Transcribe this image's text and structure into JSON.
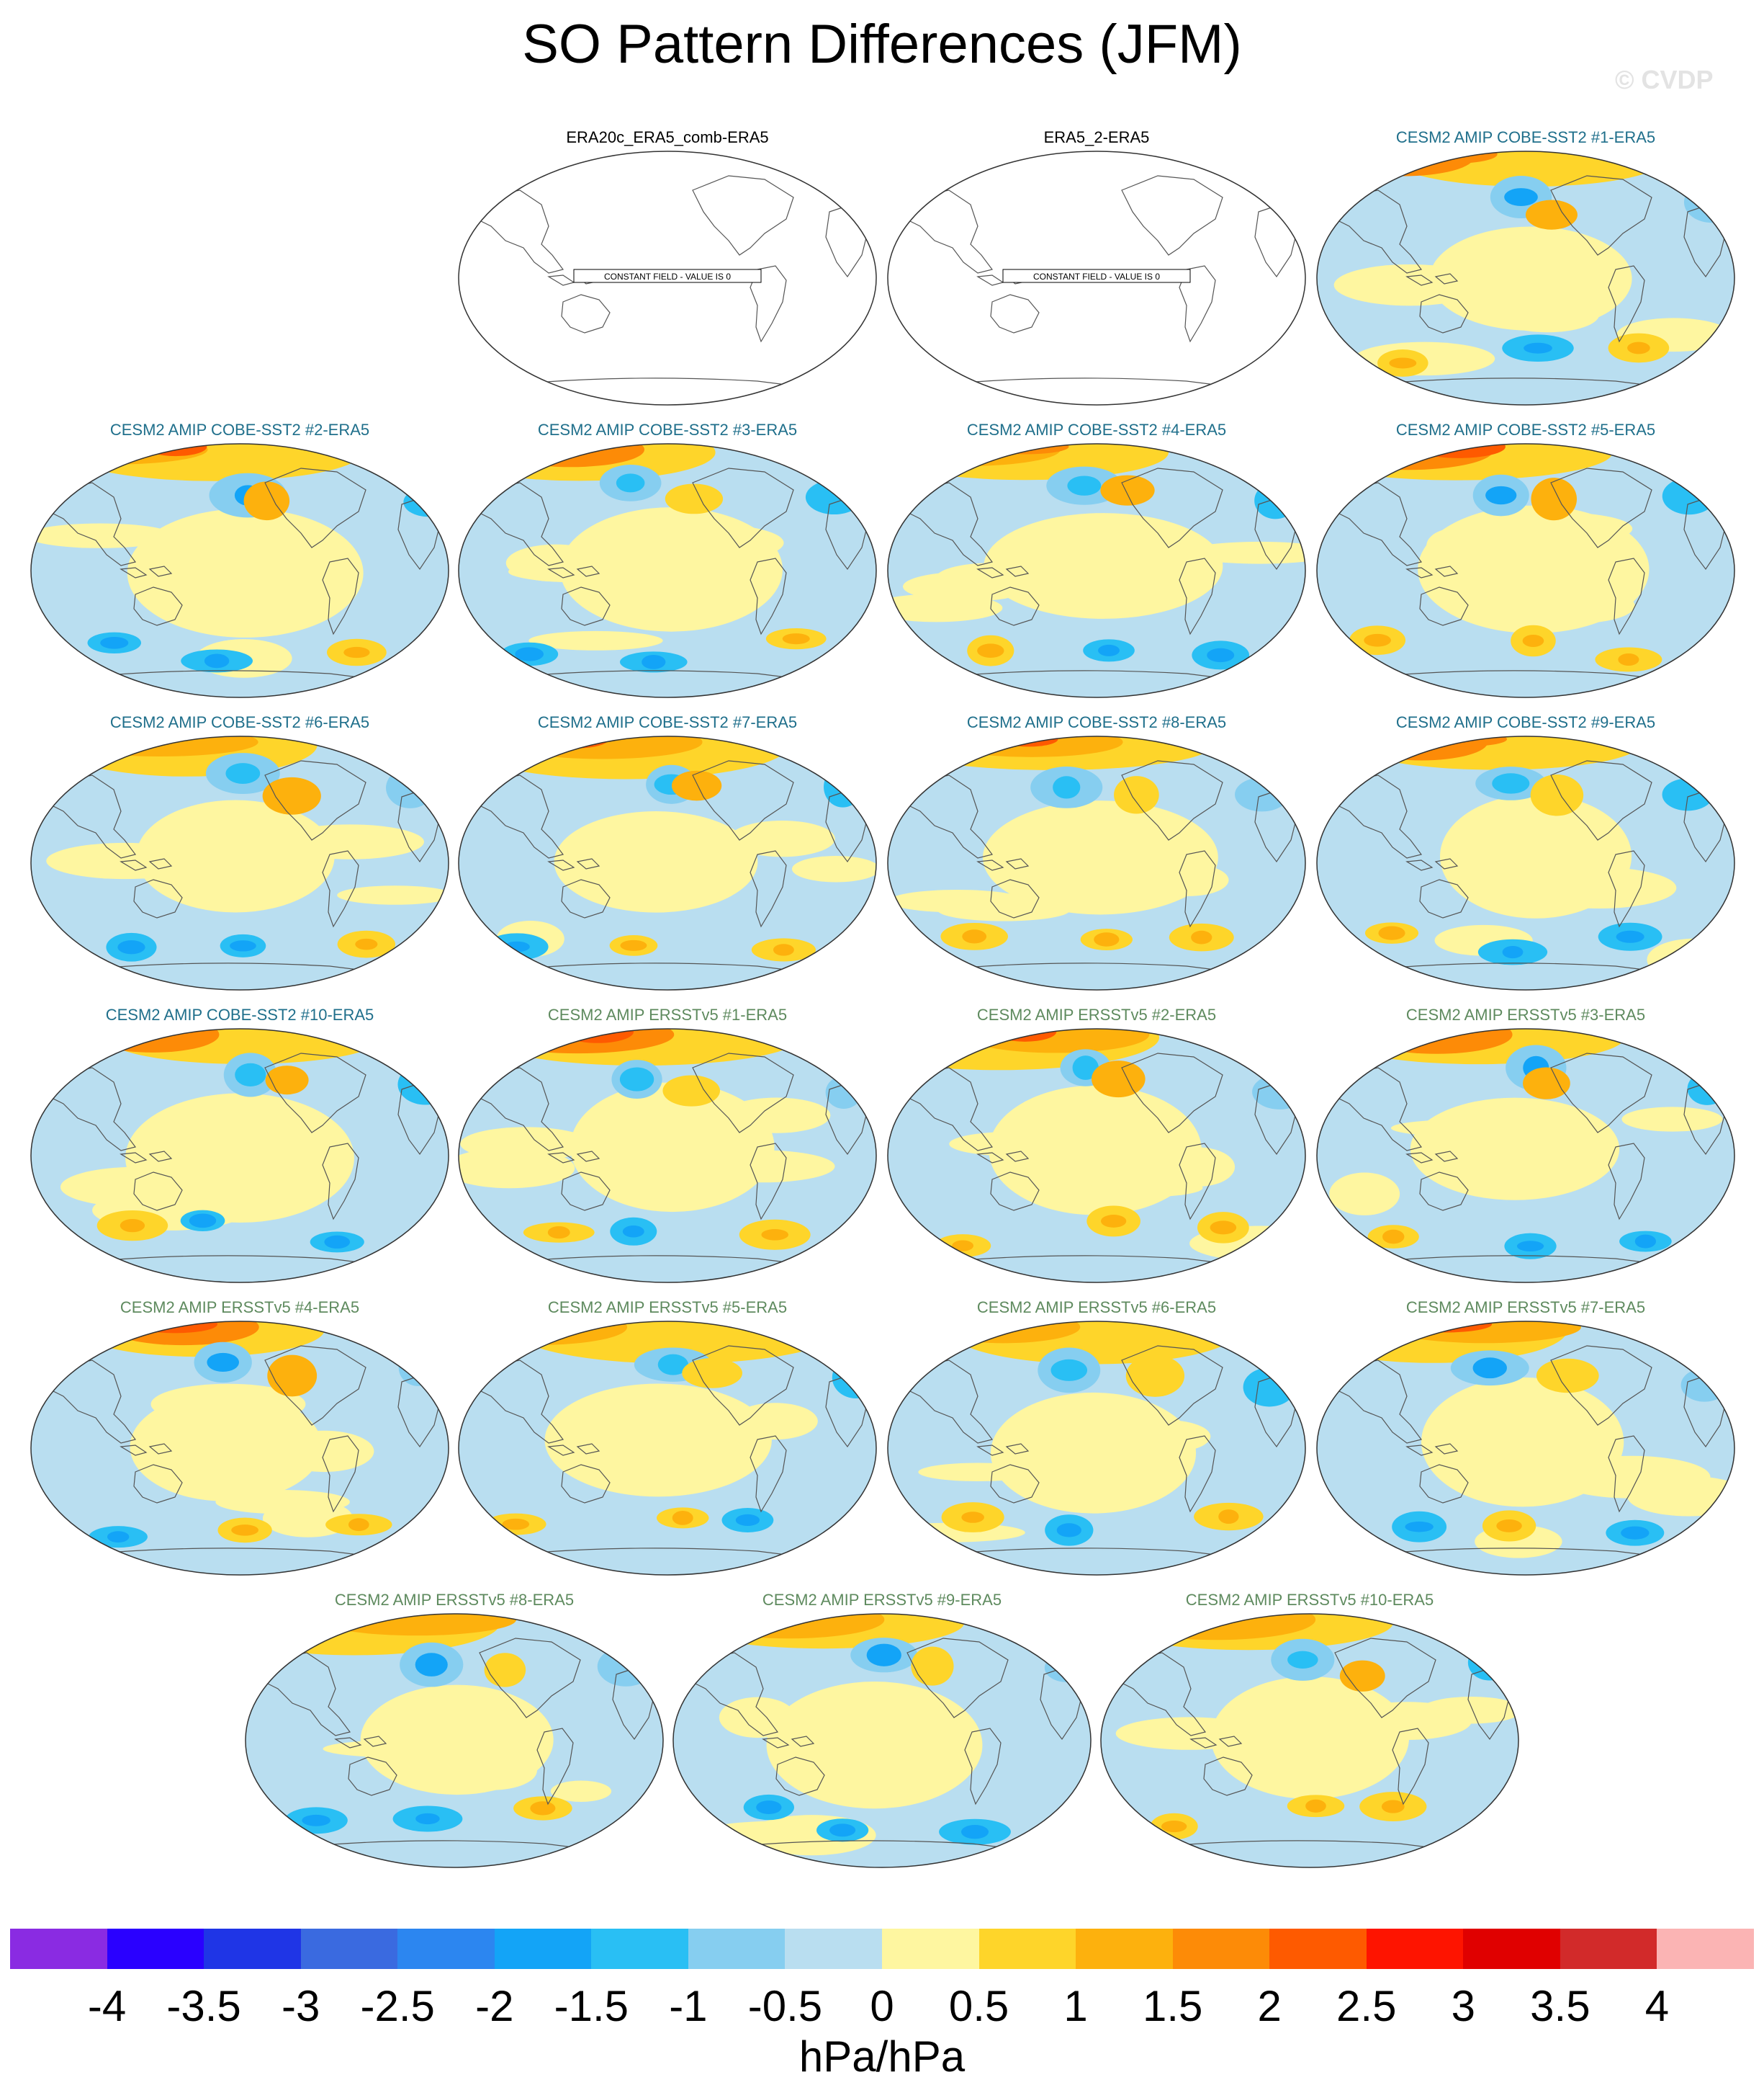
{
  "title": "SO Pattern Differences (JFM)",
  "watermark": "© CVDP",
  "colorbar": {
    "colors": [
      "#8a2be2",
      "#2a00ff",
      "#1f35e6",
      "#3a6ae0",
      "#2c86f0",
      "#13a4f7",
      "#29bff4",
      "#86cef0",
      "#b9def0",
      "#fef6a0",
      "#fed52a",
      "#fdb10d",
      "#fd8b07",
      "#fe5a00",
      "#fe1400",
      "#e00000",
      "#d22a2a",
      "#fbb4b4"
    ],
    "ticks": [
      "-4",
      "-3.5",
      "-3",
      "-2.5",
      "-2",
      "-1.5",
      "-1",
      "-0.5",
      "0",
      "0.5",
      "1",
      "1.5",
      "2",
      "2.5",
      "3",
      "3.5",
      "4"
    ],
    "units": "hPa/hPa"
  },
  "panels": [
    {
      "title": "ERA20c_ERA5_comb-ERA5",
      "title_color": "#000000",
      "constant": true,
      "constant_label": "CONSTANT FIELD - VALUE IS 0",
      "seed": 0
    },
    {
      "title": "ERA5_2-ERA5",
      "title_color": "#000000",
      "constant": true,
      "constant_label": "CONSTANT FIELD - VALUE IS 0",
      "seed": 0
    },
    {
      "title": "CESM2 AMIP COBE-SST2 #1-ERA5",
      "title_color": "#1f6f8b",
      "constant": false,
      "seed": 1
    },
    {
      "title": "CESM2 AMIP COBE-SST2 #2-ERA5",
      "title_color": "#1f6f8b",
      "constant": false,
      "seed": 2
    },
    {
      "title": "CESM2 AMIP COBE-SST2 #3-ERA5",
      "title_color": "#1f6f8b",
      "constant": false,
      "seed": 3
    },
    {
      "title": "CESM2 AMIP COBE-SST2 #4-ERA5",
      "title_color": "#1f6f8b",
      "constant": false,
      "seed": 4
    },
    {
      "title": "CESM2 AMIP COBE-SST2 #5-ERA5",
      "title_color": "#1f6f8b",
      "constant": false,
      "seed": 5
    },
    {
      "title": "CESM2 AMIP COBE-SST2 #6-ERA5",
      "title_color": "#1f6f8b",
      "constant": false,
      "seed": 6
    },
    {
      "title": "CESM2 AMIP COBE-SST2 #7-ERA5",
      "title_color": "#1f6f8b",
      "constant": false,
      "seed": 7
    },
    {
      "title": "CESM2 AMIP COBE-SST2 #8-ERA5",
      "title_color": "#1f6f8b",
      "constant": false,
      "seed": 8
    },
    {
      "title": "CESM2 AMIP COBE-SST2 #9-ERA5",
      "title_color": "#1f6f8b",
      "constant": false,
      "seed": 9
    },
    {
      "title": "CESM2 AMIP COBE-SST2 #10-ERA5",
      "title_color": "#1f6f8b",
      "constant": false,
      "seed": 10
    },
    {
      "title": "CESM2 AMIP ERSSTv5 #1-ERA5",
      "title_color": "#5e8a5e",
      "constant": false,
      "seed": 11
    },
    {
      "title": "CESM2 AMIP ERSSTv5 #2-ERA5",
      "title_color": "#5e8a5e",
      "constant": false,
      "seed": 12
    },
    {
      "title": "CESM2 AMIP ERSSTv5 #3-ERA5",
      "title_color": "#5e8a5e",
      "constant": false,
      "seed": 13
    },
    {
      "title": "CESM2 AMIP ERSSTv5 #4-ERA5",
      "title_color": "#5e8a5e",
      "constant": false,
      "seed": 14
    },
    {
      "title": "CESM2 AMIP ERSSTv5 #5-ERA5",
      "title_color": "#5e8a5e",
      "constant": false,
      "seed": 15
    },
    {
      "title": "CESM2 AMIP ERSSTv5 #6-ERA5",
      "title_color": "#5e8a5e",
      "constant": false,
      "seed": 16
    },
    {
      "title": "CESM2 AMIP ERSSTv5 #7-ERA5",
      "title_color": "#5e8a5e",
      "constant": false,
      "seed": 17
    },
    {
      "title": "CESM2 AMIP ERSSTv5 #8-ERA5",
      "title_color": "#5e8a5e",
      "constant": false,
      "seed": 18
    },
    {
      "title": "CESM2 AMIP ERSSTv5 #9-ERA5",
      "title_color": "#5e8a5e",
      "constant": false,
      "seed": 19
    },
    {
      "title": "CESM2 AMIP ERSSTv5 #10-ERA5",
      "title_color": "#5e8a5e",
      "constant": false,
      "seed": 20
    }
  ]
}
